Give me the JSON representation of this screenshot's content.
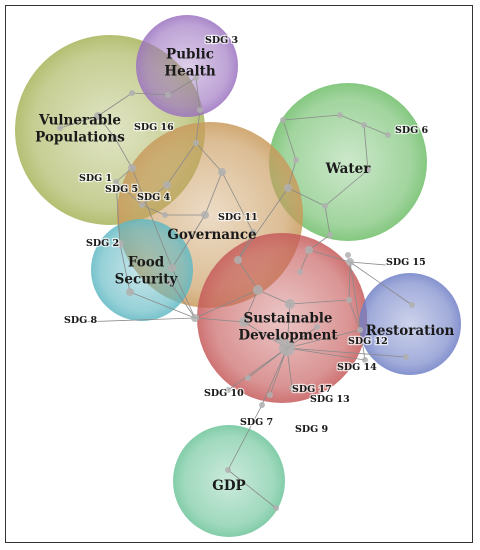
{
  "clusters": [
    {
      "id": "vulnerable",
      "lines": [
        "Vulnerable",
        "Populations"
      ],
      "color": "#a8b45a"
    },
    {
      "id": "public-health",
      "lines": [
        "Public",
        "Health"
      ],
      "color": "#9b72c0"
    },
    {
      "id": "water",
      "lines": [
        "Water"
      ],
      "color": "#6fbe6a"
    },
    {
      "id": "governance",
      "lines": [
        "Governance"
      ],
      "color": "#c99a5c"
    },
    {
      "id": "food-security",
      "lines": [
        "Food",
        "Security"
      ],
      "color": "#5fb8c3"
    },
    {
      "id": "sustainable-development",
      "lines": [
        "Sustainable",
        "Development"
      ],
      "color": "#c65a5a"
    },
    {
      "id": "restoration",
      "lines": [
        "Restoration"
      ],
      "color": "#6f7fc6"
    },
    {
      "id": "gdp",
      "lines": [
        "GDP"
      ],
      "color": "#6cc49a"
    }
  ],
  "sdgs": [
    "SDG 1",
    "SDG 2",
    "SDG 3",
    "SDG 4",
    "SDG 5",
    "SDG 6",
    "SDG 7",
    "SDG 8",
    "SDG 9",
    "SDG 10",
    "SDG 11",
    "SDG 12",
    "SDG 13",
    "SDG 14",
    "SDG 15",
    "SDG 16",
    "SDG 17"
  ]
}
